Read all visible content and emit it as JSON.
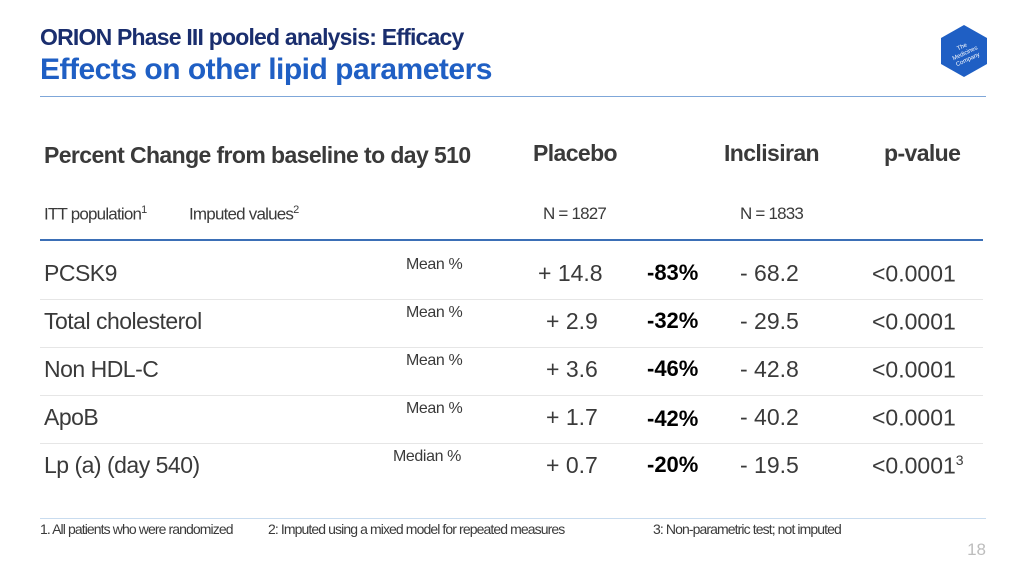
{
  "slide": {
    "kicker": "ORION Phase III pooled analysis: Efficacy",
    "title": "Effects on other lipid parameters",
    "page_number": "18",
    "logo_text": "The Medicines Company",
    "accent_color": "#1f5fc4"
  },
  "table": {
    "header": {
      "main": "Percent Change from baseline to day 510",
      "placebo": "Placebo",
      "inclisiran": "Inclisiran",
      "pvalue": "p-value"
    },
    "subheader": {
      "itt": "ITT population",
      "itt_ref": "1",
      "imputed": "Imputed values",
      "imputed_ref": "2",
      "n_placebo": "N = 1827",
      "n_inclisiran": "N = 1833"
    },
    "rows": [
      {
        "parameter": "PCSK9",
        "stat": "Mean %",
        "placebo": "+ 14.8",
        "difference": "-83%",
        "inclisiran": "- 68.2",
        "pvalue": "<0.0001",
        "pvalue_ref": ""
      },
      {
        "parameter": "Total cholesterol",
        "stat": "Mean %",
        "placebo": "+ 2.9",
        "difference": "-32%",
        "inclisiran": "- 29.5",
        "pvalue": "<0.0001",
        "pvalue_ref": ""
      },
      {
        "parameter": "Non HDL-C",
        "stat": "Mean %",
        "placebo": "+ 3.6",
        "difference": "-46%",
        "inclisiran": "- 42.8",
        "pvalue": "<0.0001",
        "pvalue_ref": ""
      },
      {
        "parameter": "ApoB",
        "stat": "Mean %",
        "placebo": "+ 1.7",
        "difference": "-42%",
        "inclisiran": "- 40.2",
        "pvalue": "<0.0001",
        "pvalue_ref": ""
      },
      {
        "parameter": "Lp (a) (day 540)",
        "stat": "Median %",
        "placebo": "+ 0.7",
        "difference": "-20%",
        "inclisiran": "- 19.5",
        "pvalue": "<0.0001",
        "pvalue_ref": "3"
      }
    ]
  },
  "footnotes": {
    "f1": "1. All patients who were randomized",
    "f2": "2: Imputed using a mixed model for repeated measures",
    "f3": "3: Non-parametric test; not imputed"
  }
}
